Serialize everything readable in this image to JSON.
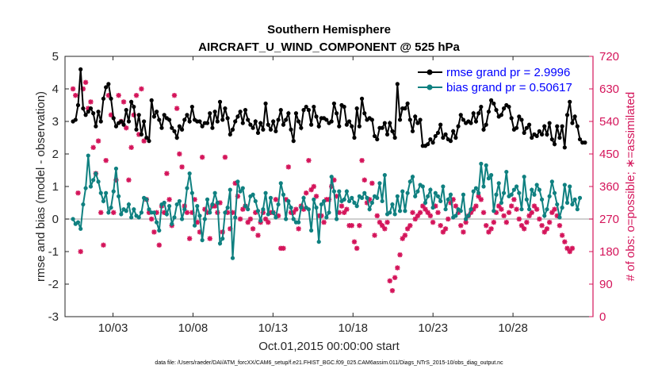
{
  "chart_data": {
    "type": "line",
    "title_line1": "Southern Hemisphere",
    "title_line2": "AIRCRAFT_U_WIND_COMPONENT @ 525 hPa",
    "xlabel": "Oct.01,2015 00:00:00 start",
    "ylabel": "rmse and bias (model - observation)",
    "ylabel_right": "# of obs: o=possible; ∗=assimilated",
    "xlim": [
      0,
      33
    ],
    "ylim": [
      -3,
      5
    ],
    "ylim_right": [
      0,
      720
    ],
    "x_ticks": [
      3,
      8,
      13,
      18,
      23,
      28
    ],
    "x_tick_labels": [
      "10/03",
      "10/08",
      "10/13",
      "10/18",
      "10/23",
      "10/28"
    ],
    "y_ticks": [
      -3,
      -2,
      -1,
      0,
      1,
      2,
      3,
      4,
      5
    ],
    "y_tick_labels": [
      "-3",
      "-2",
      "-1",
      "0",
      "1",
      "2",
      "3",
      "4",
      "5"
    ],
    "y_right_ticks": [
      0,
      90,
      180,
      270,
      360,
      450,
      540,
      630,
      720
    ],
    "y_right_tick_labels": [
      "0",
      "90",
      "180",
      "270",
      "360",
      "450",
      "540",
      "630",
      "720"
    ],
    "colors": {
      "rmse": "#000000",
      "bias": "#0f8080",
      "obs": "#d4145a",
      "zero": "#bfbfbf",
      "legend_text": "#0000ff"
    },
    "series": [
      {
        "name": "rmse grand pr = 2.9996",
        "values": [
          3.0,
          3.05,
          3.5,
          4.6,
          3.4,
          3.2,
          3.3,
          3.4,
          3.25,
          2.85,
          3.3,
          3.0,
          3.7,
          4.05,
          4.15,
          3.7,
          3.1,
          2.85,
          2.95,
          3.0,
          2.9,
          3.35,
          3.0,
          3.6,
          3.45,
          2.75,
          3.2,
          2.6,
          3.0,
          2.5,
          2.4,
          3.65,
          3.15,
          3.3,
          3.05,
          2.8,
          3.2,
          3.1,
          3.05,
          2.8,
          2.7,
          2.5,
          2.85,
          2.75,
          3.05,
          3.2,
          3.0,
          3.45,
          3.05,
          3.0,
          3.0,
          2.85,
          2.95,
          2.95,
          3.25,
          2.8,
          3.3,
          3.0,
          3.6,
          3.05,
          3.4,
          3.1,
          2.6,
          2.75,
          3.0,
          3.15,
          3.3,
          2.95,
          3.35,
          3.05,
          2.9,
          2.8,
          3.0,
          2.65,
          2.95,
          2.75,
          3.55,
          2.9,
          2.75,
          3.0,
          2.7,
          3.05,
          3.35,
          2.9,
          3.05,
          3.25,
          2.75,
          2.4,
          3.25,
          3.0,
          2.8,
          3.35,
          3.45,
          3.35,
          2.9,
          3.45,
          3.15,
          2.85,
          3.1,
          3.1,
          3.05,
          2.95,
          3.0,
          3.55,
          3.25,
          2.85,
          3.5,
          3.45,
          2.9,
          3.0,
          2.85,
          2.5,
          3.4,
          2.85,
          3.7,
          3.25,
          3.05,
          3.1,
          3.05,
          2.55,
          2.45,
          2.8,
          2.8,
          2.95,
          2.6,
          2.95,
          2.7,
          2.5,
          4.15,
          3.05,
          3.4,
          3.4,
          3.55,
          3.05,
          2.7,
          3.15,
          2.95,
          3.05,
          2.25,
          2.25,
          2.3,
          2.45,
          2.35,
          2.55,
          2.65,
          2.9,
          2.5,
          2.6,
          2.45,
          2.4,
          2.7,
          2.5,
          2.85,
          3.2,
          3.05,
          2.95,
          3.0,
          2.95,
          3.25,
          3.0,
          3.25,
          3.45,
          2.75,
          2.9,
          3.3,
          3.65,
          3.55,
          3.35,
          3.15,
          3.2,
          3.4,
          3.5,
          3.45,
          3.1,
          2.75,
          2.8,
          3.15,
          3.05,
          2.65,
          2.8,
          2.9,
          2.5,
          2.6,
          2.55,
          2.7,
          2.6,
          2.85,
          2.6,
          2.95,
          2.45,
          2.3,
          2.85,
          2.5,
          2.85,
          2.2,
          3.2,
          3.6,
          2.95,
          3.15,
          2.85,
          2.45,
          2.35,
          2.35
        ]
      },
      {
        "name": "bias grand pr = 0.50617",
        "values": [
          0.0,
          -0.15,
          -0.1,
          -0.3,
          0.45,
          0.95,
          1.95,
          1.0,
          1.2,
          1.4,
          1.15,
          0.8,
          0.55,
          0.8,
          0.2,
          0.35,
          0.85,
          1.55,
          0.7,
          0.15,
          0.3,
          0.25,
          0.45,
          0.05,
          0.3,
          0.1,
          0.05,
          0.2,
          0.65,
          0.6,
          0.3,
          0.2,
          0.2,
          -0.1,
          -0.35,
          0.45,
          0.5,
          0.15,
          0.4,
          -0.15,
          0.05,
          0.45,
          0.55,
          0.0,
          0.3,
          0.95,
          1.4,
          0.8,
          -0.2,
          0.4,
          0.1,
          -0.65,
          0.0,
          0.6,
          0.2,
          0.45,
          0.8,
          0.5,
          -0.75,
          -0.6,
          0.2,
          0.35,
          0.9,
          -1.2,
          0.05,
          1.15,
          0.85,
          0.95,
          0.4,
          0.3,
          0.7,
          0.75,
          0.55,
          0.25,
          -0.05,
          0.3,
          0.8,
          0.15,
          0.65,
          0.2,
          0.05,
          0.45,
          1.1,
          0.75,
          0.0,
          0.55,
          0.35,
          0.0,
          -0.1,
          -0.1,
          0.35,
          0.65,
          0.35,
          0.3,
          -0.35,
          0.6,
          0.35,
          -0.7,
          0.45,
          0.55,
          0.05,
          0.2,
          1.3,
          0.85,
          0.0,
          0.85,
          0.55,
          0.6,
          0.85,
          0.55,
          0.65,
          0.5,
          0.4,
          0.7,
          0.65,
          0.8,
          0.65,
          0.3,
          0.5,
          0.7,
          0.65,
          1.1,
          0.55,
          1.35,
          0.15,
          0.2,
          0.45,
          0.15,
          0.7,
          0.25,
          0.85,
          0.25,
          0.8,
          1.15,
          1.3,
          0.7,
          0.85,
          1.05,
          1.0,
          0.5,
          0.7,
          0.9,
          0.35,
          0.8,
          0.7,
          0.55,
          1.0,
          0.3,
          0.6,
          0.75,
          0.05,
          0.1,
          0.3,
          0.25,
          0.75,
          0.0,
          0.1,
          0.3,
          0.85,
          0.95,
          0.8,
          1.7,
          1.0,
          1.65,
          1.25,
          1.35,
          0.25,
          0.75,
          1.1,
          0.5,
          0.8,
          1.45,
          0.7,
          0.75,
          0.9,
          1.0,
          0.8,
          0.3,
          1.3,
          0.6,
          0.3,
          0.9,
          0.75,
          1.05,
          0.9,
          0.6,
          0.1,
          0.3,
          0.7,
          1.15,
          0.8,
          0.45,
          0.05,
          0.35,
          1.05,
          0.5,
          1.0,
          0.45,
          0.6,
          0.3,
          0.65
        ]
      },
      {
        "name": "# of obs (possible / assimilated)",
        "values": [
          630,
          612,
          342,
          180,
          630,
          648,
          576,
          594,
          468,
          396,
          486,
          288,
          198,
          432,
          612,
          558,
          288,
          378,
          612,
          540,
          594,
          522,
          378,
          468,
          558,
          612,
          504,
          630,
          486,
          324,
          288,
          270,
          234,
          288,
          198,
          306,
          288,
          396,
          324,
          252,
          612,
          576,
          450,
          414,
          306,
          288,
          216,
          288,
          324,
          261,
          234,
          441,
          297,
          288,
          216,
          306,
          306,
          288,
          315,
          234,
          441,
          288,
          243,
          288,
          369,
          333,
          270,
          297,
          306,
          261,
          270,
          243,
          288,
          225,
          261,
          288,
          270,
          261,
          288,
          288,
          324,
          279,
          189,
          189,
          324,
          414,
          288,
          288,
          297,
          243,
          306,
          297,
          342,
          432,
          351,
          360,
          333,
          279,
          279,
          261,
          324,
          324,
          360,
          378,
          333,
          288,
          306,
          288,
          297,
          252,
          252,
          207,
          189,
          252,
          432,
          378,
          315,
          324,
          369,
          225,
          279,
          261,
          252,
          243,
          261,
          99,
          72,
          108,
          135,
          171,
          216,
          225,
          243,
          252,
          288,
          270,
          279,
          288,
          306,
          297,
          288,
          279,
          261,
          306,
          288,
          252,
          234,
          243,
          270,
          315,
          324,
          306,
          288,
          252,
          234,
          261,
          279,
          288,
          297,
          306,
          333,
          324,
          288,
          252,
          234,
          243,
          261,
          288,
          306,
          297,
          279,
          261,
          288,
          306,
          324,
          297,
          270,
          252,
          243,
          261,
          279,
          288,
          306,
          297,
          270,
          252,
          234,
          243,
          261,
          288,
          297,
          279,
          252,
          225,
          207,
          189,
          180,
          189
        ]
      }
    ],
    "footer": "data file: /Users/raeder/DAI/ATM_forcXX/CAM6_setup/f.e21.FHIST_BGC.f09_025.CAM6assim.011/Diags_NTrS_2015-10/obs_diag_output.nc"
  }
}
